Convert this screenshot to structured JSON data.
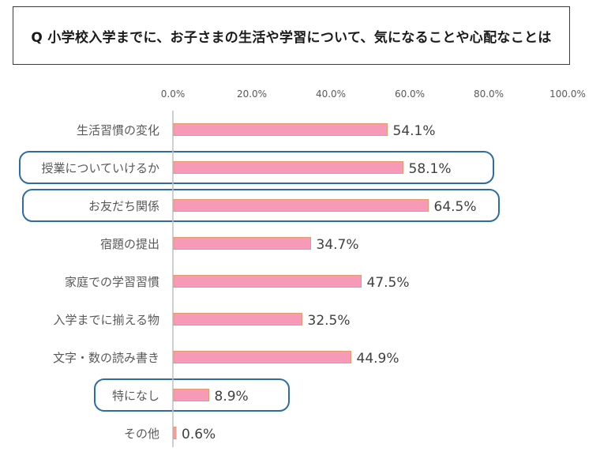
{
  "title": "Q 小学校入学までに、お子さまの生活や学習について、気になることや心配なことは",
  "colors": {
    "bar_fill": "#F79AB8",
    "bar_edge": "#E89A6E",
    "highlight": "#2E6DA4",
    "axis": "#BFBFBF",
    "label": "#595959",
    "value": "#404040"
  },
  "chart_data": {
    "type": "bar",
    "orientation": "horizontal",
    "categories": [
      "生活習慣の変化",
      "授業についていけるか",
      "お友だち関係",
      "宿題の提出",
      "家庭での学習習慣",
      "入学までに揃える物",
      "文字・数の読み書き",
      "特になし",
      "その他"
    ],
    "values": [
      54.1,
      58.1,
      64.5,
      34.7,
      47.5,
      32.5,
      44.9,
      8.9,
      0.6
    ],
    "value_labels": [
      "54.1%",
      "58.1%",
      "64.5%",
      "34.7%",
      "47.5%",
      "32.5%",
      "44.9%",
      "8.9%",
      "0.6%"
    ],
    "xlim": [
      0,
      100
    ],
    "ticks": [
      0,
      20,
      40,
      60,
      80,
      100
    ],
    "tick_labels": [
      "0.0%",
      "20.0%",
      "40.0%",
      "60.0%",
      "80.0%",
      "100.0%"
    ],
    "grid": false,
    "highlighted_categories": [
      "授業についていけるか",
      "お友だち関係",
      "特になし"
    ]
  }
}
